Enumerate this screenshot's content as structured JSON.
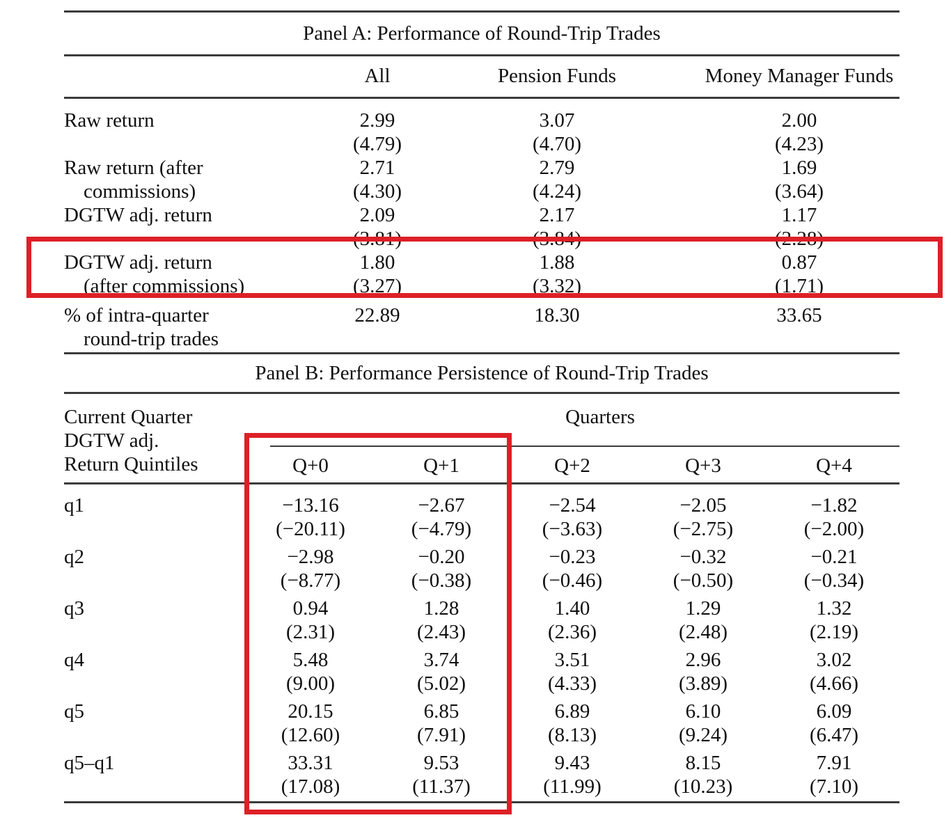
{
  "panel_a": {
    "title": "Panel A: Performance of Round-Trip Trades",
    "columns": [
      "All",
      "Pension Funds",
      "Money Manager Funds"
    ],
    "rows": [
      {
        "label": [
          "Raw return"
        ],
        "values": [
          "2.99",
          "3.07",
          "2.00"
        ],
        "tstats": [
          "(4.79)",
          "(4.70)",
          "(4.23)"
        ]
      },
      {
        "label": [
          "Raw return (after",
          "commissions)"
        ],
        "values": [
          "2.71",
          "2.79",
          "1.69"
        ],
        "tstats": [
          "(4.30)",
          "(4.24)",
          "(3.64)"
        ]
      },
      {
        "label": [
          "DGTW adj. return"
        ],
        "values": [
          "2.09",
          "2.17",
          "1.17"
        ],
        "tstats": [
          "(3.81)",
          "(3.84)",
          "(2.28)"
        ]
      },
      {
        "label": [
          "DGTW adj. return",
          "(after commissions)"
        ],
        "values": [
          "1.80",
          "1.88",
          "0.87"
        ],
        "tstats": [
          "(3.27)",
          "(3.32)",
          "(1.71)"
        ],
        "highlighted": true
      },
      {
        "label": [
          "% of intra-quarter",
          "round-trip trades"
        ],
        "values": [
          "22.89",
          "18.30",
          "33.65"
        ],
        "tstats": null
      }
    ]
  },
  "panel_b": {
    "title": "Panel B: Performance Persistence of Round-Trip Trades",
    "stub_header": [
      "Current Quarter",
      "DGTW adj.",
      "Return Quintiles"
    ],
    "spanner": "Quarters",
    "columns": [
      "Q+0",
      "Q+1",
      "Q+2",
      "Q+3",
      "Q+4"
    ],
    "rows": [
      {
        "label": "q1",
        "values": [
          "−13.16",
          "−2.67",
          "−2.54",
          "−2.05",
          "−1.82"
        ],
        "tstats": [
          "(−20.11)",
          "(−4.79)",
          "(−3.63)",
          "(−2.75)",
          "(−2.00)"
        ]
      },
      {
        "label": "q2",
        "values": [
          "−2.98",
          "−0.20",
          "−0.23",
          "−0.32",
          "−0.21"
        ],
        "tstats": [
          "(−8.77)",
          "(−0.38)",
          "(−0.46)",
          "(−0.50)",
          "(−0.34)"
        ]
      },
      {
        "label": "q3",
        "values": [
          "0.94",
          "1.28",
          "1.40",
          "1.29",
          "1.32"
        ],
        "tstats": [
          "(2.31)",
          "(2.43)",
          "(2.36)",
          "(2.48)",
          "(2.19)"
        ]
      },
      {
        "label": "q4",
        "values": [
          "5.48",
          "3.74",
          "3.51",
          "2.96",
          "3.02"
        ],
        "tstats": [
          "(9.00)",
          "(5.02)",
          "(4.33)",
          "(3.89)",
          "(4.66)"
        ]
      },
      {
        "label": "q5",
        "values": [
          "20.15",
          "6.85",
          "6.89",
          "6.10",
          "6.09"
        ],
        "tstats": [
          "(12.60)",
          "(7.91)",
          "(8.13)",
          "(9.24)",
          "(6.47)"
        ]
      },
      {
        "label": "q5–q1",
        "values": [
          "33.31",
          "9.53",
          "9.43",
          "8.15",
          "7.91"
        ],
        "tstats": [
          "(17.08)",
          "(11.37)",
          "(11.99)",
          "(10.23)",
          "(7.10)"
        ]
      }
    ]
  },
  "annotations": {
    "color": "#dd2027",
    "boxes": [
      {
        "name": "row-highlight",
        "target": "DGTW adj. return (after commissions) row"
      },
      {
        "name": "columns-highlight",
        "target": "Q+0 and Q+1 columns"
      }
    ]
  }
}
